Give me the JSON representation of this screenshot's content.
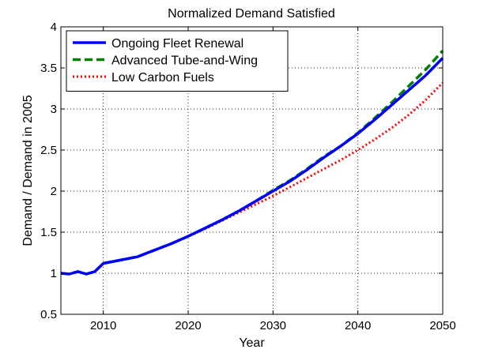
{
  "chart_data": {
    "type": "line",
    "title": "Normalized Demand Satisfied",
    "xlabel": "Year",
    "ylabel": "Demand / Demand in 2005",
    "xlim": [
      2005,
      2050
    ],
    "ylim": [
      0.5,
      4
    ],
    "xticks": [
      2010,
      2020,
      2030,
      2040,
      2050
    ],
    "yticks": [
      0.5,
      1,
      1.5,
      2,
      2.5,
      3,
      3.5,
      4
    ],
    "grid": true,
    "legend_position": "top-left",
    "series": [
      {
        "name": "Ongoing Fleet Renewal",
        "color": "#0000ff",
        "style": "solid",
        "x": [
          2005,
          2006,
          2007,
          2008,
          2009,
          2010,
          2012,
          2014,
          2016,
          2018,
          2020,
          2022,
          2024,
          2026,
          2028,
          2030,
          2032,
          2034,
          2036,
          2038,
          2040,
          2042,
          2044,
          2046,
          2048,
          2050
        ],
        "y": [
          1.0,
          0.99,
          1.02,
          0.99,
          1.02,
          1.12,
          1.16,
          1.2,
          1.28,
          1.36,
          1.45,
          1.55,
          1.65,
          1.76,
          1.88,
          2.0,
          2.12,
          2.26,
          2.41,
          2.55,
          2.7,
          2.87,
          3.05,
          3.23,
          3.41,
          3.62
        ]
      },
      {
        "name": "Advanced Tube-and-Wing",
        "color": "#007f00",
        "style": "dashed",
        "x": [
          2005,
          2006,
          2007,
          2008,
          2009,
          2010,
          2012,
          2014,
          2016,
          2018,
          2020,
          2022,
          2024,
          2026,
          2028,
          2030,
          2032,
          2034,
          2036,
          2038,
          2040,
          2042,
          2044,
          2046,
          2048,
          2050
        ],
        "y": [
          1.0,
          0.99,
          1.02,
          0.99,
          1.02,
          1.12,
          1.16,
          1.2,
          1.28,
          1.36,
          1.45,
          1.55,
          1.65,
          1.76,
          1.88,
          2.01,
          2.13,
          2.27,
          2.42,
          2.55,
          2.71,
          2.89,
          3.08,
          3.28,
          3.48,
          3.71
        ]
      },
      {
        "name": "Low Carbon Fuels",
        "color": "#ff0000",
        "style": "dotted",
        "x": [
          2005,
          2006,
          2007,
          2008,
          2009,
          2010,
          2012,
          2014,
          2016,
          2018,
          2020,
          2022,
          2024,
          2026,
          2028,
          2030,
          2032,
          2034,
          2036,
          2038,
          2040,
          2042,
          2044,
          2046,
          2048,
          2050
        ],
        "y": [
          1.0,
          0.99,
          1.02,
          0.99,
          1.02,
          1.12,
          1.16,
          1.2,
          1.28,
          1.36,
          1.45,
          1.54,
          1.64,
          1.74,
          1.84,
          1.94,
          2.05,
          2.16,
          2.27,
          2.38,
          2.5,
          2.63,
          2.77,
          2.93,
          3.11,
          3.32
        ]
      }
    ]
  }
}
